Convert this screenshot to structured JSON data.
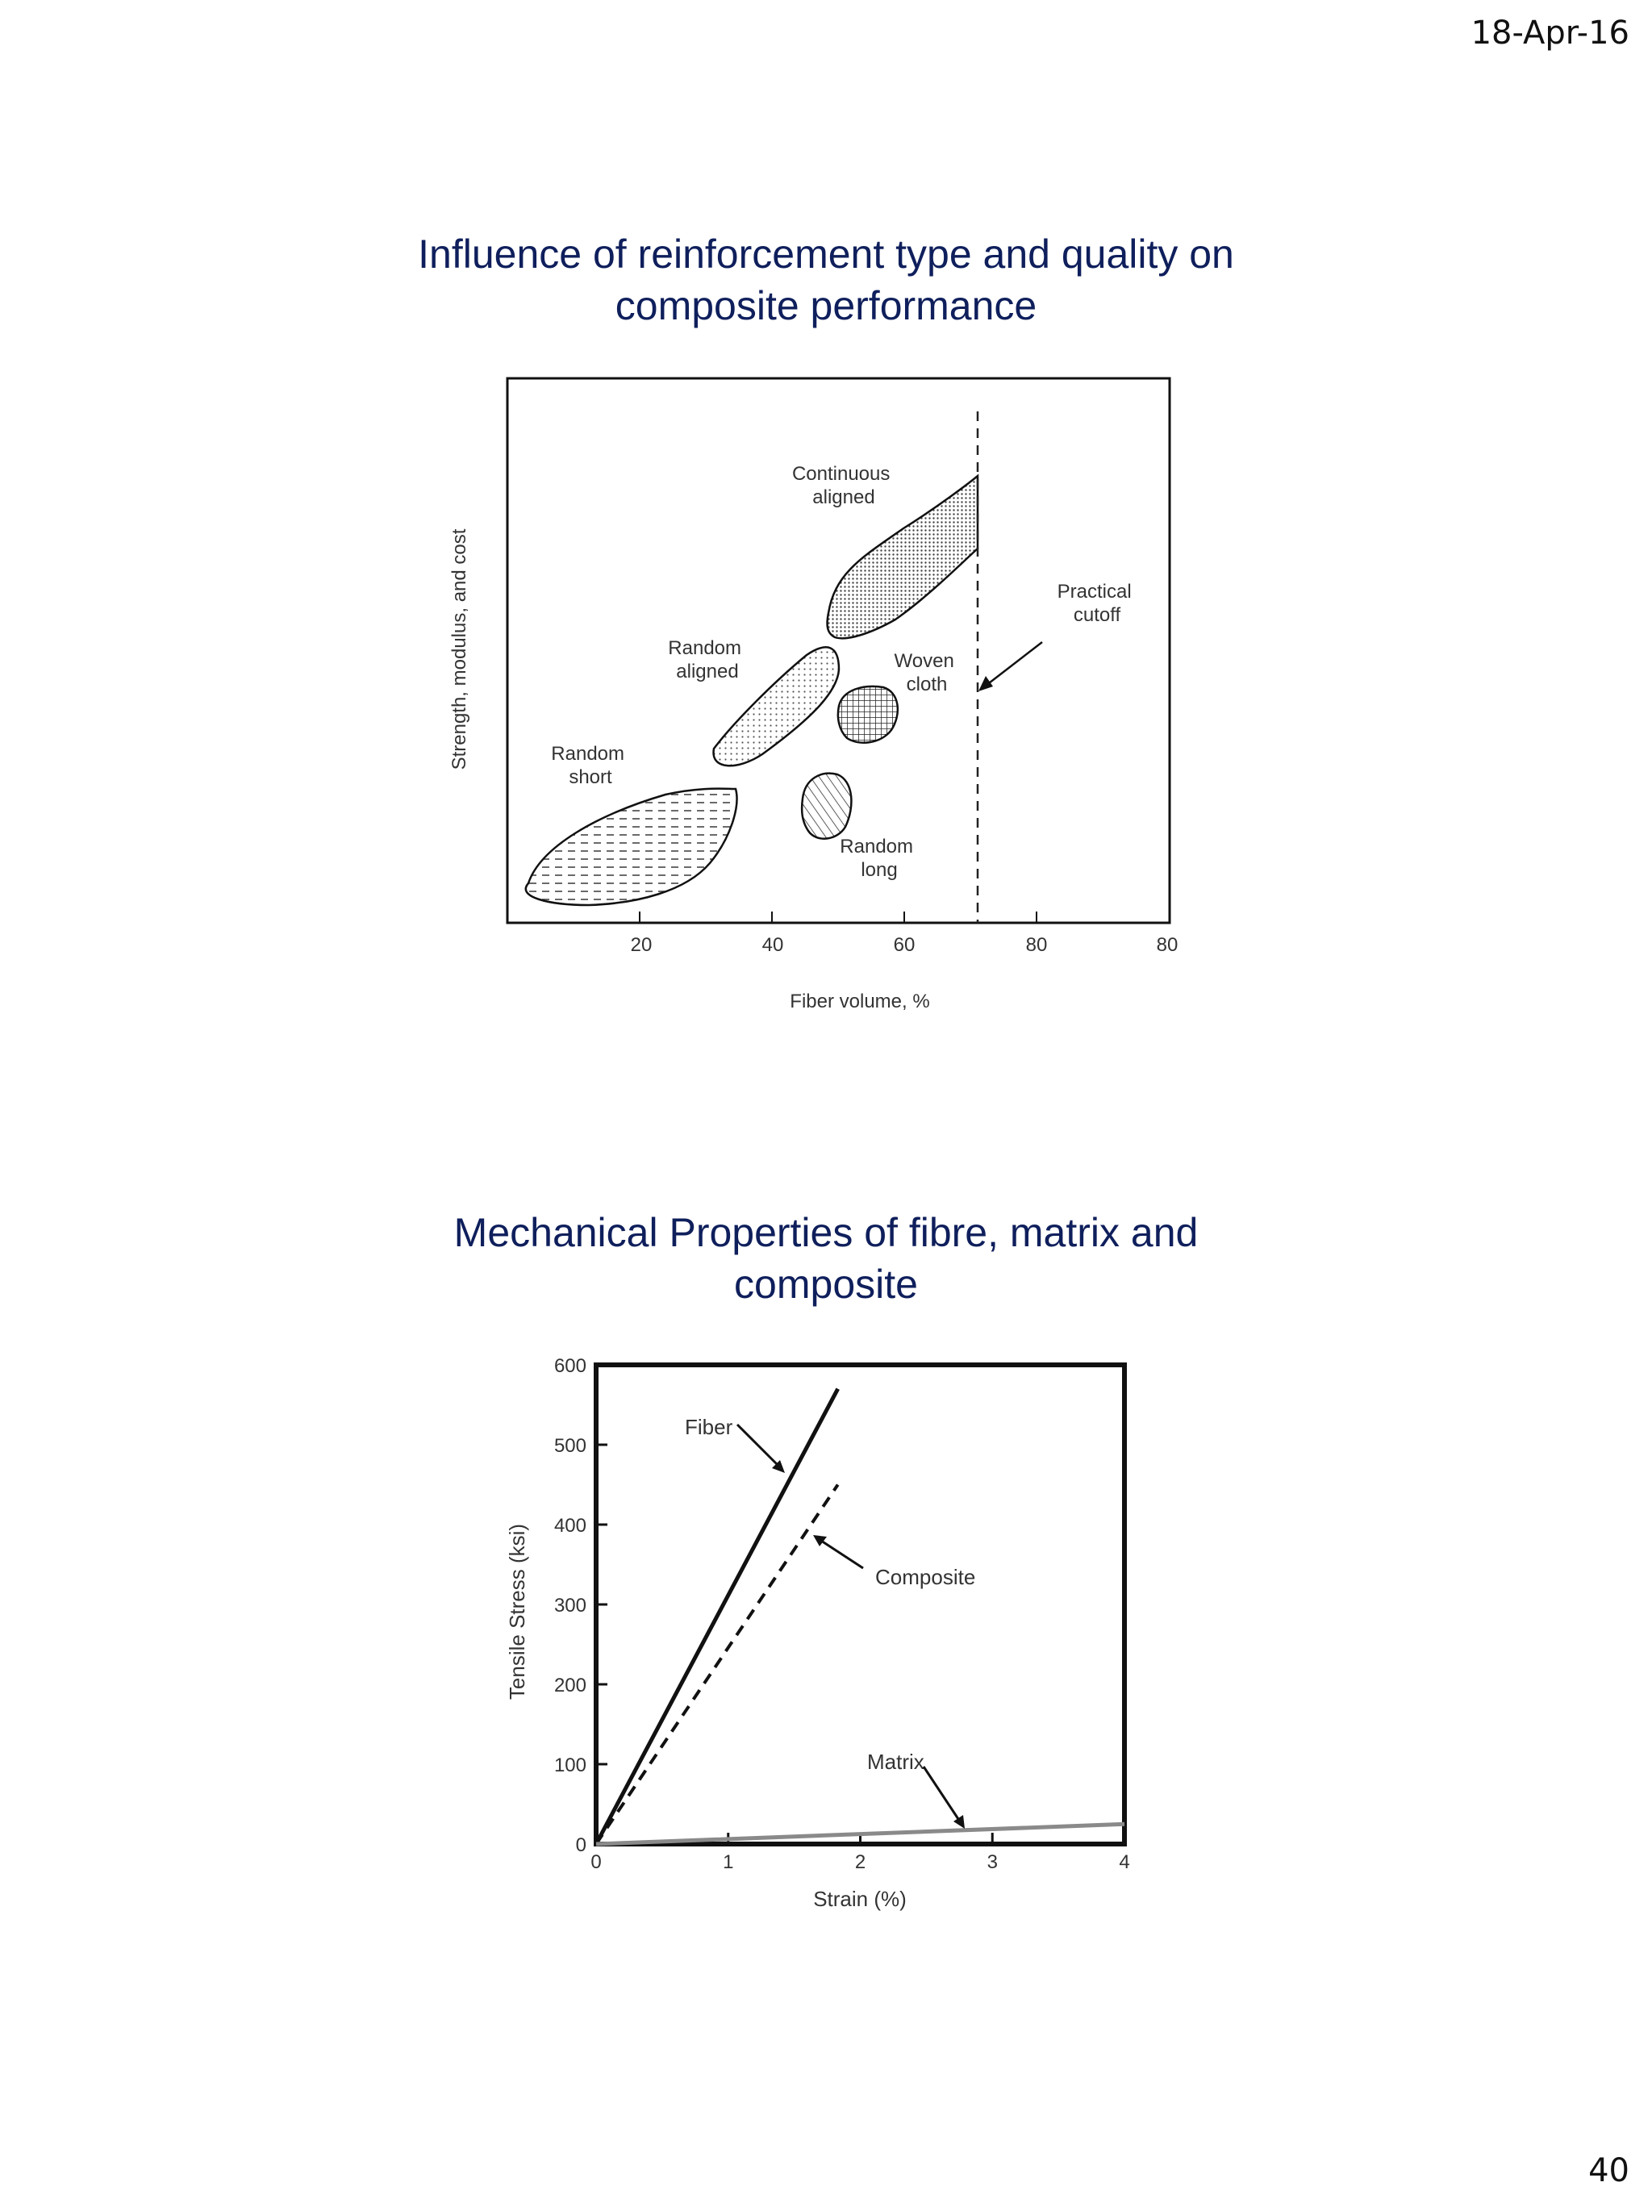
{
  "header": {
    "date": "18-Apr-16"
  },
  "footer": {
    "page_number": "40"
  },
  "slides": [
    {
      "title_line1": "Influence of reinforcement type and quality on",
      "title_line2": "composite performance"
    },
    {
      "title_line1": "Mechanical Properties of fibre, matrix and",
      "title_line2": "composite"
    }
  ],
  "chart_data": [
    {
      "type": "scatter",
      "title": "",
      "xlabel": "Fiber volume, %",
      "ylabel": "Strength, modulus, and cost",
      "x_tick_labels": [
        "20",
        "40",
        "60",
        "80",
        "80"
      ],
      "grid": false,
      "regions": [
        {
          "name": "Random short",
          "label_lines": [
            "Random",
            "short"
          ],
          "fiber_volume_range": [
            2,
            35
          ],
          "pattern": "dashed-horizontal"
        },
        {
          "name": "Random aligned",
          "label_lines": [
            "Random",
            "aligned"
          ],
          "fiber_volume_range": [
            31,
            51
          ],
          "pattern": "dotted"
        },
        {
          "name": "Continuous aligned",
          "label_lines": [
            "Continuous",
            "aligned"
          ],
          "fiber_volume_range": [
            49,
            72
          ],
          "pattern": "dense-dotted"
        },
        {
          "name": "Woven cloth",
          "label_lines": [
            "Woven",
            "cloth"
          ],
          "fiber_volume_range": [
            51,
            61
          ],
          "pattern": "grid"
        },
        {
          "name": "Random long",
          "label_lines": [
            "Random",
            "long"
          ],
          "fiber_volume_range": [
            46,
            53
          ],
          "pattern": "diagonal-hatch"
        }
      ],
      "cutoff": {
        "label_lines": [
          "Practical",
          "cutoff"
        ],
        "fiber_volume": 72,
        "style": "dashed"
      }
    },
    {
      "type": "line",
      "title": "",
      "xlabel": "Strain  (%)",
      "ylabel": "Tensile Stress (ksi)",
      "x_tick_labels": [
        "0",
        "1",
        "2",
        "3",
        "4"
      ],
      "y_tick_labels": [
        "0",
        "100",
        "200",
        "300",
        "400",
        "500",
        "600"
      ],
      "xlim": [
        0,
        4
      ],
      "ylim": [
        0,
        600
      ],
      "grid": false,
      "series": [
        {
          "name": "Fiber",
          "style": "solid-black",
          "x": [
            0,
            1.83
          ],
          "y": [
            0,
            570
          ]
        },
        {
          "name": "Composite",
          "style": "dashed-black",
          "x": [
            0,
            1.83
          ],
          "y": [
            0,
            450
          ]
        },
        {
          "name": "Matrix",
          "style": "solid-gray",
          "x": [
            0,
            4
          ],
          "y": [
            0,
            25
          ]
        }
      ]
    }
  ]
}
